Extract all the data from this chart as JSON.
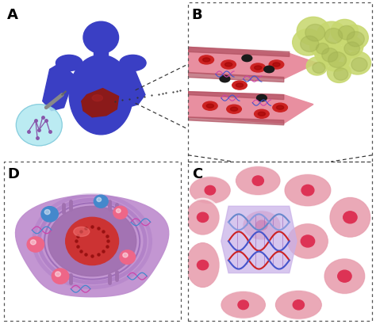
{
  "figure_bg": "#ffffff",
  "panel_A": {
    "label": "A",
    "bg": "#ffffff",
    "body_color": "#3a3fc4",
    "liver_color": "#8b1a1a",
    "circle_color": "#b0e8f0"
  },
  "panel_B": {
    "label": "B",
    "bg": "#d6f4f8",
    "vessel_color": "#e88fa0",
    "vessel_dark": "#b05060",
    "rbc_color": "#cc2222",
    "bacteria_color": "#c8d870"
  },
  "panel_C": {
    "label": "C",
    "bg": "#f0b0bc",
    "cell_color": "#e8a0b0",
    "highlight_color": "#c8b0e8",
    "dna_color1": "#cc2222",
    "dna_color2": "#4455cc"
  },
  "panel_D": {
    "label": "D",
    "bg": "#f5c0d8",
    "cell_color": "#c090d0",
    "nucleus_color": "#cc3333",
    "membrane_color": "#a070b0",
    "blue_sphere": "#4488cc",
    "pink_sphere": "#ee6688"
  },
  "label_fontsize": 13,
  "label_fontweight": "bold",
  "border_color": "#555555",
  "border_lw": 0.9
}
